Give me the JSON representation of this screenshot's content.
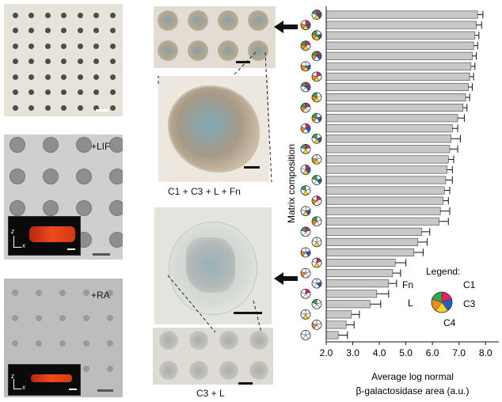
{
  "panels": {
    "lif_label": "+LIF",
    "ra_label": "+RA",
    "inset_axis_z": "z",
    "inset_axis_x": "x",
    "caption_top": "C1 + C3 + L + Fn",
    "caption_bottom": "C3 + L"
  },
  "legend": {
    "title": "Legend:",
    "fn": "Fn",
    "c1": "C1",
    "l": "L",
    "c3": "C3",
    "c4": "C4"
  },
  "colors": {
    "fn": "#e0245e",
    "c1": "#1f5fc4",
    "c3": "#f6d12a",
    "c4": "#f08c1a",
    "l": "#2fa84f",
    "bar": "#c8c8c8",
    "plate": "#e8e3da"
  },
  "chart_data": {
    "type": "bar",
    "orientation": "horizontal",
    "xlabel": "Average log normal",
    "xlabel2": "β-galactosidase area (a.u.)",
    "ylabel": "Matrix composition",
    "xlim": [
      2.0,
      8.5
    ],
    "xticks": [
      "2.0",
      "3.0",
      "4.0",
      "5.0",
      "6.0",
      "7.0",
      "8.0"
    ],
    "values": [
      7.7,
      7.65,
      7.6,
      7.55,
      7.5,
      7.45,
      7.4,
      7.35,
      7.25,
      7.15,
      6.95,
      6.75,
      6.7,
      6.65,
      6.6,
      6.55,
      6.5,
      6.45,
      6.4,
      6.3,
      6.25,
      5.6,
      5.45,
      5.3,
      4.6,
      4.5,
      4.35,
      3.9,
      3.65,
      2.95,
      2.75,
      2.45
    ],
    "errors": [
      0.2,
      0.2,
      0.15,
      0.15,
      0.15,
      0.15,
      0.15,
      0.15,
      0.15,
      0.15,
      0.25,
      0.2,
      0.35,
      0.3,
      0.2,
      0.2,
      0.25,
      0.2,
      0.2,
      0.35,
      0.35,
      0.3,
      0.35,
      0.35,
      0.4,
      0.3,
      0.3,
      0.45,
      0.4,
      0.3,
      0.3,
      0.35
    ]
  }
}
